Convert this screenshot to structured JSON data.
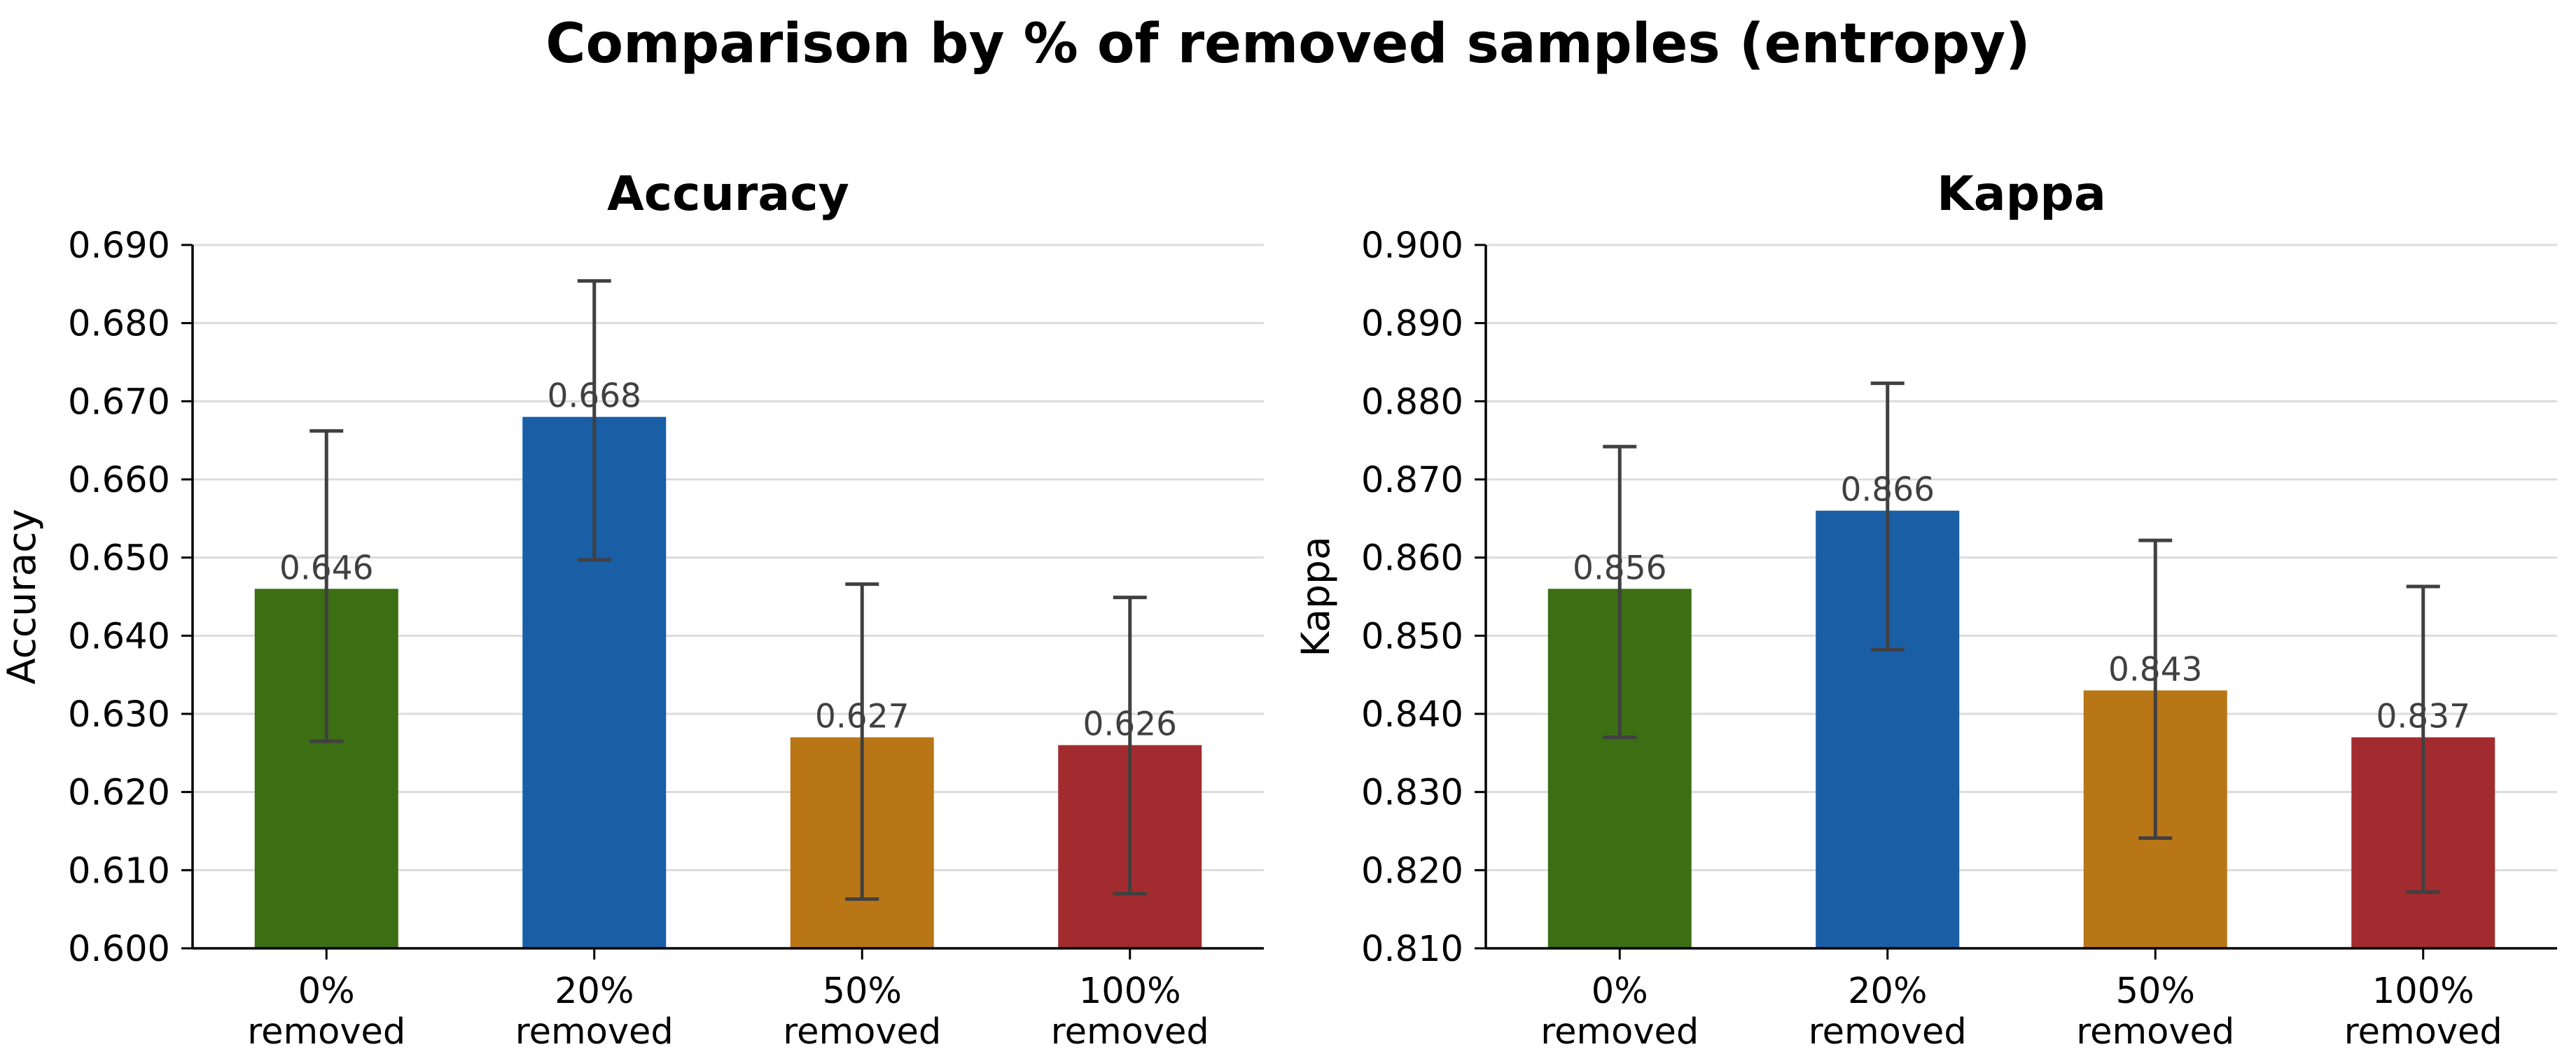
{
  "suptitle": "Comparison by % of removed samples (entropy)",
  "chart_data": [
    {
      "type": "bar",
      "title": "Accuracy",
      "xlabel": "",
      "ylabel": "Accuracy",
      "categories": [
        "0%\nremoved",
        "20%\nremoved",
        "50%\nremoved",
        "100%\nremoved"
      ],
      "values": [
        0.646,
        0.668,
        0.627,
        0.626
      ],
      "value_labels": [
        "0.646",
        "0.668",
        "0.627",
        "0.626"
      ],
      "error_low": [
        0.6265,
        0.6497,
        0.6063,
        0.607
      ],
      "error_high": [
        0.6662,
        0.6854,
        0.6466,
        0.6449
      ],
      "ylim": [
        0.6,
        0.69
      ],
      "yticks": [
        "0.600",
        "0.610",
        "0.620",
        "0.630",
        "0.640",
        "0.650",
        "0.660",
        "0.670",
        "0.680",
        "0.690"
      ],
      "colors": [
        "#3c6e14",
        "#1a5ea6",
        "#b97617",
        "#a22b2f"
      ],
      "grid": true
    },
    {
      "type": "bar",
      "title": "Kappa",
      "xlabel": "",
      "ylabel": "Kappa",
      "categories": [
        "0%\nremoved",
        "20%\nremoved",
        "50%\nremoved",
        "100%\nremoved"
      ],
      "values": [
        0.856,
        0.866,
        0.843,
        0.837
      ],
      "value_labels": [
        "0.856",
        "0.866",
        "0.843",
        "0.837"
      ],
      "error_low": [
        0.837,
        0.8482,
        0.8241,
        0.8172
      ],
      "error_high": [
        0.8742,
        0.8823,
        0.8622,
        0.8563
      ],
      "ylim": [
        0.81,
        0.9
      ],
      "yticks": [
        "0.810",
        "0.820",
        "0.830",
        "0.840",
        "0.850",
        "0.860",
        "0.870",
        "0.880",
        "0.890",
        "0.900"
      ],
      "colors": [
        "#3c6e14",
        "#1a5ea6",
        "#b97617",
        "#a22b2f"
      ],
      "grid": true
    }
  ]
}
